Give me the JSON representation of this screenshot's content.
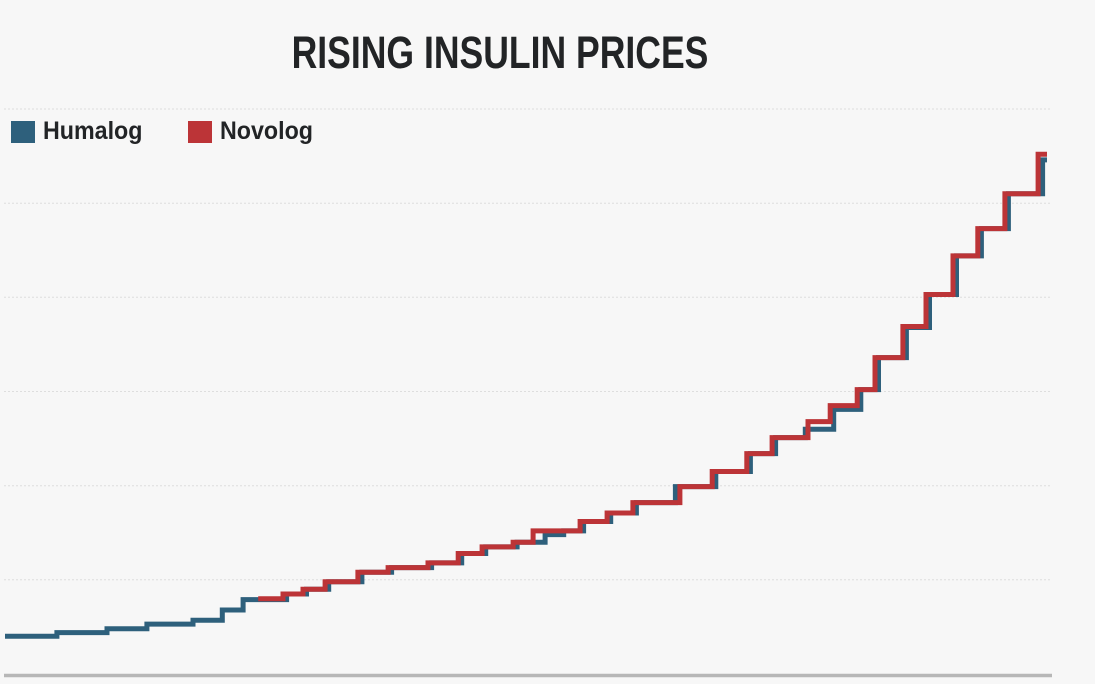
{
  "page": {
    "background_color": "#f7f7f7"
  },
  "title": "RISING INSULIN PRICES",
  "legend": {
    "items": [
      {
        "label": "Humalog",
        "color": "#2e607c"
      },
      {
        "label": "Novolog",
        "color": "#bc3437"
      }
    ]
  },
  "chart_data": {
    "type": "line",
    "line_style": "step-after",
    "title": "RISING INSULIN PRICES",
    "xlabel": "",
    "ylabel": "",
    "x_range": [
      1996,
      2019.5
    ],
    "y_range": [
      0,
      300
    ],
    "y_gridline_interval": 50,
    "axis_tick_labels_visible": false,
    "grid": true,
    "legend_position": "top-left",
    "note": "No axis tick labels are rendered in the image; years and dollar price values below are estimated from line positions relative to the unlabeled gridlines.",
    "end_x": 2019.5,
    "series": [
      {
        "name": "Humalog",
        "color": "#2e607c",
        "points": [
          [
            1996.0,
            20
          ],
          [
            1997.17,
            22
          ],
          [
            1998.3,
            24
          ],
          [
            1999.2,
            26.5
          ],
          [
            2000.24,
            28.5
          ],
          [
            2000.9,
            34
          ],
          [
            2001.37,
            39.5
          ],
          [
            2002.35,
            42.5
          ],
          [
            2002.8,
            45
          ],
          [
            2003.3,
            49
          ],
          [
            2004.05,
            54
          ],
          [
            2004.72,
            56.5
          ],
          [
            2005.62,
            59
          ],
          [
            2006.3,
            64
          ],
          [
            2006.84,
            67.5
          ],
          [
            2007.55,
            70
          ],
          [
            2008.18,
            74
          ],
          [
            2008.6,
            76
          ],
          [
            2009.05,
            81
          ],
          [
            2009.66,
            85.5
          ],
          [
            2010.24,
            91
          ],
          [
            2011.12,
            99.5
          ],
          [
            2012.03,
            107.5
          ],
          [
            2012.81,
            117
          ],
          [
            2013.38,
            125.5
          ],
          [
            2014.05,
            130
          ],
          [
            2014.69,
            140.5
          ],
          [
            2015.3,
            151
          ],
          [
            2015.7,
            168
          ],
          [
            2016.33,
            184
          ],
          [
            2016.85,
            201.5
          ],
          [
            2017.46,
            222
          ],
          [
            2018.02,
            236.5
          ],
          [
            2018.63,
            255
          ],
          [
            2019.4,
            273
          ]
        ]
      },
      {
        "name": "Novolog",
        "color": "#bc3437",
        "points": [
          [
            2001.71,
            40
          ],
          [
            2002.27,
            42.5
          ],
          [
            2002.72,
            45
          ],
          [
            2003.22,
            49
          ],
          [
            2003.96,
            54
          ],
          [
            2004.64,
            56.5
          ],
          [
            2005.54,
            59
          ],
          [
            2006.22,
            64
          ],
          [
            2006.76,
            67.5
          ],
          [
            2007.46,
            70
          ],
          [
            2007.91,
            76
          ],
          [
            2008.97,
            81
          ],
          [
            2009.58,
            85.5
          ],
          [
            2010.16,
            91
          ],
          [
            2011.22,
            99.5
          ],
          [
            2011.95,
            107.5
          ],
          [
            2012.73,
            117
          ],
          [
            2013.3,
            125.5
          ],
          [
            2014.11,
            134
          ],
          [
            2014.61,
            142.5
          ],
          [
            2015.22,
            151
          ],
          [
            2015.62,
            168
          ],
          [
            2016.25,
            184.5
          ],
          [
            2016.77,
            201.5
          ],
          [
            2017.38,
            222
          ],
          [
            2017.94,
            236.5
          ],
          [
            2018.55,
            255
          ],
          [
            2019.3,
            276
          ]
        ]
      }
    ],
    "styles": {
      "grid_color": "#dedede",
      "axis_color": "#b7b7b7",
      "line_width": 5
    }
  }
}
